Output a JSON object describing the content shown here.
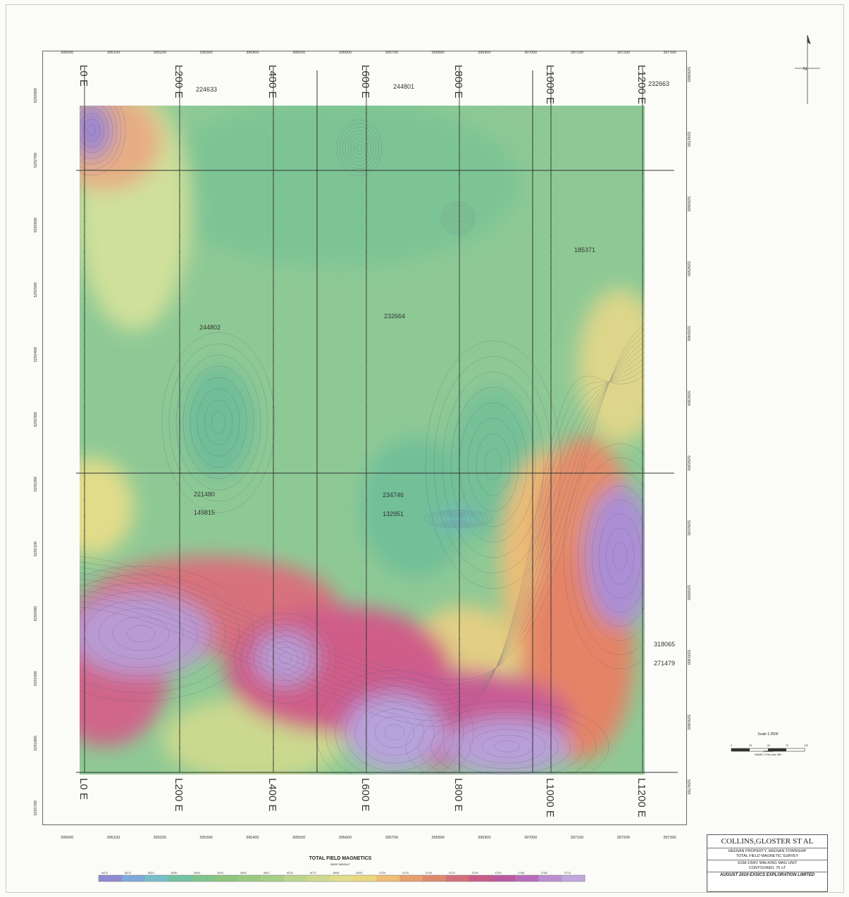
{
  "lines_top": [
    "L0 E",
    "L200 E",
    "L400 E",
    "L600 E",
    "L800 E",
    "L1000 E",
    "L1200 E"
  ],
  "lines_bottom": [
    "L0 E",
    "L200 E",
    "L400 E",
    "L600 E",
    "L800 E",
    "L1000 E",
    "L1200 E"
  ],
  "eastings_top": [
    "395000",
    "395100",
    "395200",
    "395300",
    "395400",
    "395500",
    "395600",
    "395700",
    "395800",
    "395900",
    "397000",
    "397100",
    "397200",
    "397300"
  ],
  "eastings_bottom": [
    "395000",
    "395100",
    "395200",
    "395300",
    "395400",
    "395500",
    "395600",
    "395700",
    "395800",
    "395900",
    "397000",
    "397100",
    "397200",
    "397300"
  ],
  "northings": [
    "5292800",
    "5292700",
    "5292600",
    "5292500",
    "5292400",
    "5292300",
    "5292200",
    "5292100",
    "5292000",
    "5291900",
    "5291800",
    "5291700"
  ],
  "claims": {
    "c224633": "224633",
    "c244801": "244801",
    "c232663": "232663",
    "c185371": "185371",
    "c244802": "244802",
    "c232664": "232664",
    "c221480": "221480",
    "c149815": "149815",
    "c234746": "234746",
    "c132951": "132951",
    "c318065": "318065",
    "c271479": "271479"
  },
  "legend": {
    "title": "TOTAL FIELD MAGNETICS",
    "subtitle": "BASE 56000nT",
    "ticks": [
      "56178",
      "56276",
      "56323",
      "56380",
      "56416",
      "56476",
      "56530",
      "56621",
      "56706",
      "56770",
      "56855",
      "56923",
      "57003",
      "57076",
      "57145",
      "57223",
      "57299",
      "57376",
      "57466",
      "57540",
      "57715"
    ],
    "colors": [
      "#8f8ad0",
      "#7fa9d9",
      "#76bfc8",
      "#72c2a4",
      "#7cc48c",
      "#8ec47c",
      "#9bc982",
      "#a6cf86",
      "#bcd58e",
      "#cfd98e",
      "#e1dd8a",
      "#ead77e",
      "#ecbe76",
      "#e5a06e",
      "#dc8a6e",
      "#d36f78",
      "#c75c8a",
      "#bc5aa0",
      "#b86cbc",
      "#bb8ed0",
      "#c2a6de"
    ]
  },
  "scale": {
    "title": "Scale 1:2500",
    "ticks": [
      "0",
      "25",
      "50",
      "75",
      "100"
    ],
    "units": "(metres)",
    "units2": "NAD83 / UTM zone 16N"
  },
  "north_label": "N",
  "title_block": {
    "owner": "COLLINS,GLOSTER ST AL",
    "line1": "HEENAN PROPERTY, HEENAN TOWNSHIP",
    "line2": "TOTAL FIELD MAGNETIC SURVEY",
    "line3": "GSM-19WV WALKING MAG UNIT",
    "line4": "CONTOURED: 75 nT",
    "footer": "AUGUST 2019  EXSICS EXPLORATION LIMITED"
  }
}
